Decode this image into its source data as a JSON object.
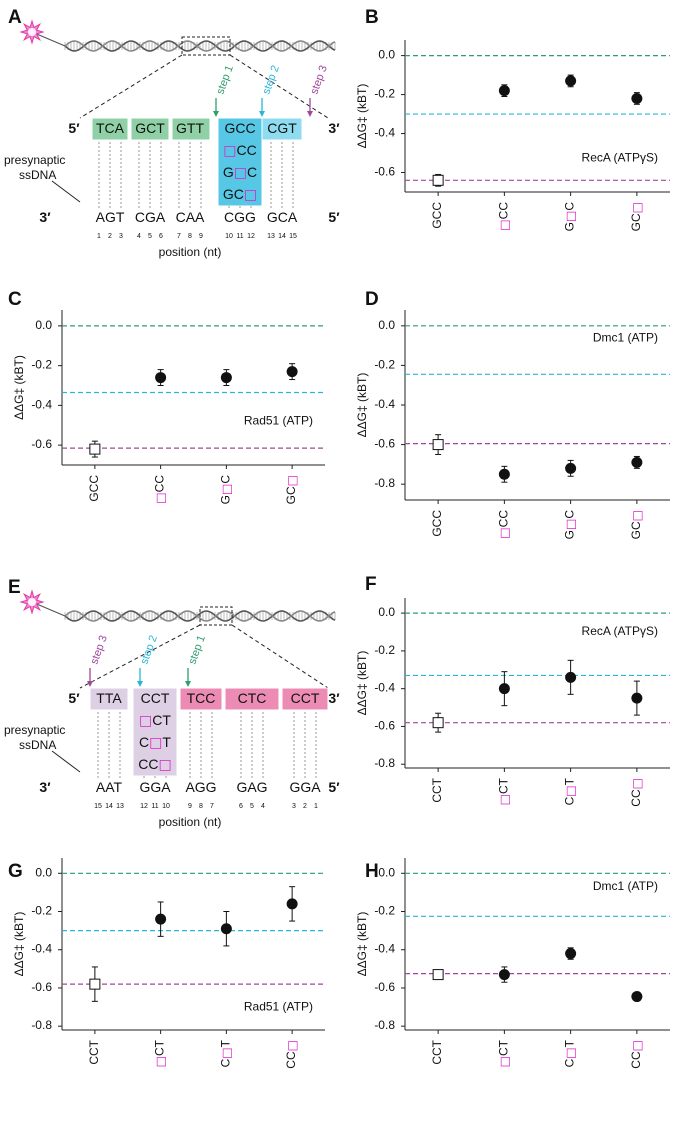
{
  "diagram_a": {
    "panel": "A",
    "top_5": "5′",
    "top_3": "3′",
    "top_codons": [
      "TCA",
      "GCT",
      "GTT",
      "GCC",
      "CGT"
    ],
    "variants": [
      "□CC",
      "G□C",
      "GC□"
    ],
    "steps": [
      "step 1",
      "step 2",
      "step 3"
    ],
    "strand_label": [
      "presynaptic",
      "ssDNA"
    ],
    "bottom_3": "3′",
    "bottom_5": "5′",
    "bottom_codons": [
      "AGT",
      "CGA",
      "CAA",
      "CGG",
      "GCA"
    ],
    "positions": [
      1,
      2,
      3,
      4,
      5,
      6,
      7,
      8,
      9,
      10,
      11,
      12,
      13,
      14,
      15
    ],
    "x_label": "position (nt)"
  },
  "diagram_e": {
    "panel": "E",
    "top_5": "5′",
    "top_3": "3′",
    "top_codons": [
      "TTA",
      "CCT",
      "TCC",
      "CTC",
      "CCT"
    ],
    "variants": [
      "□CT",
      "C□T",
      "CC□"
    ],
    "steps": [
      "step 3",
      "step 2",
      "step 1"
    ],
    "strand_label": [
      "presynaptic",
      "ssDNA"
    ],
    "bottom_3": "3′",
    "bottom_5": "5′",
    "bottom_codons": [
      "AAT",
      "GGA",
      "AGG",
      "GAG",
      "GGA"
    ],
    "positions": [
      15,
      14,
      13,
      12,
      11,
      10,
      9,
      8,
      7,
      6,
      5,
      4,
      3,
      2,
      1
    ],
    "x_label": "position (nt)"
  },
  "chart_data": [
    {
      "type": "point",
      "panel": "B",
      "annotation": "RecA (ATPγS)",
      "y_label": "ΔΔG‡ (kBT)",
      "categories": [
        "GCC",
        "□CC",
        "G□C",
        "GC□"
      ],
      "values": [
        -0.64,
        -0.18,
        -0.13,
        -0.22
      ],
      "errors": [
        0.03,
        0.03,
        0.03,
        0.03
      ],
      "markers": [
        "square",
        "circle",
        "circle",
        "circle"
      ],
      "ylim": [
        -0.7,
        0.08
      ],
      "yticks": [
        {
          "value": 0,
          "label": "0.0"
        },
        {
          "value": -0.2,
          "label": "-0.2"
        },
        {
          "value": -0.4,
          "label": "-0.4"
        },
        {
          "value": -0.6,
          "label": "-0.6"
        }
      ],
      "reference_lines": [
        {
          "value": 0,
          "color": "#2e9e6e"
        },
        {
          "value": -0.3,
          "color": "#29b6d6"
        },
        {
          "value": -0.64,
          "color": "#a0479c"
        }
      ]
    },
    {
      "type": "point",
      "panel": "C",
      "annotation": "Rad51 (ATP)",
      "y_label": "ΔΔG‡ (kBT)",
      "categories": [
        "GCC",
        "□CC",
        "G□C",
        "GC□"
      ],
      "values": [
        -0.62,
        -0.26,
        -0.26,
        -0.23
      ],
      "errors": [
        0.04,
        0.04,
        0.04,
        0.04
      ],
      "markers": [
        "square",
        "circle",
        "circle",
        "circle"
      ],
      "ylim": [
        -0.7,
        0.08
      ],
      "yticks": [
        {
          "value": 0,
          "label": "0.0"
        },
        {
          "value": -0.2,
          "label": "-0.2"
        },
        {
          "value": -0.4,
          "label": "-0.4"
        },
        {
          "value": -0.6,
          "label": "-0.6"
        }
      ],
      "reference_lines": [
        {
          "value": 0,
          "color": "#2e9e6e"
        },
        {
          "value": -0.335,
          "color": "#29b6d6"
        },
        {
          "value": -0.615,
          "color": "#a0479c"
        }
      ]
    },
    {
      "type": "point",
      "panel": "D",
      "annotation": "Dmc1 (ATP)",
      "y_label": "ΔΔG‡ (kBT)",
      "categories": [
        "GCC",
        "□CC",
        "G□C",
        "GC□"
      ],
      "values": [
        -0.6,
        -0.75,
        -0.72,
        -0.69
      ],
      "errors": [
        0.05,
        0.04,
        0.04,
        0.03
      ],
      "markers": [
        "square",
        "circle",
        "circle",
        "circle"
      ],
      "ylim": [
        -0.88,
        0.08
      ],
      "yticks": [
        {
          "value": 0,
          "label": "0.0"
        },
        {
          "value": -0.2,
          "label": "-0.2"
        },
        {
          "value": -0.4,
          "label": "-0.4"
        },
        {
          "value": -0.6,
          "label": "-0.6"
        },
        {
          "value": -0.8,
          "label": "-0.8"
        }
      ],
      "reference_lines": [
        {
          "value": 0,
          "color": "#2e9e6e"
        },
        {
          "value": -0.245,
          "color": "#29b6d6"
        },
        {
          "value": -0.595,
          "color": "#a0479c"
        }
      ]
    },
    {
      "type": "point",
      "panel": "F",
      "annotation": "RecA (ATPγS)",
      "y_label": "ΔΔG‡ (kBT)",
      "categories": [
        "CCT",
        "□CT",
        "C□T",
        "CC□"
      ],
      "values": [
        -0.58,
        -0.4,
        -0.34,
        -0.45
      ],
      "errors": [
        0.05,
        0.09,
        0.09,
        0.09
      ],
      "markers": [
        "square",
        "circle",
        "circle",
        "circle"
      ],
      "ylim": [
        -0.82,
        0.08
      ],
      "yticks": [
        {
          "value": 0,
          "label": "0.0"
        },
        {
          "value": -0.2,
          "label": "-0.2"
        },
        {
          "value": -0.4,
          "label": "-0.4"
        },
        {
          "value": -0.6,
          "label": "-0.6"
        },
        {
          "value": -0.8,
          "label": "-0.8"
        }
      ],
      "reference_lines": [
        {
          "value": 0,
          "color": "#2e9e6e"
        },
        {
          "value": -0.33,
          "color": "#29b6d6"
        },
        {
          "value": -0.58,
          "color": "#a0479c"
        }
      ]
    },
    {
      "type": "point",
      "panel": "G",
      "annotation": "Rad51 (ATP)",
      "y_label": "ΔΔG‡ (kBT)",
      "categories": [
        "CCT",
        "□CT",
        "C□T",
        "CC□"
      ],
      "values": [
        -0.58,
        -0.24,
        -0.29,
        -0.16
      ],
      "errors": [
        0.09,
        0.09,
        0.09,
        0.09
      ],
      "markers": [
        "square",
        "circle",
        "circle",
        "circle"
      ],
      "ylim": [
        -0.82,
        0.08
      ],
      "yticks": [
        {
          "value": 0,
          "label": "0.0"
        },
        {
          "value": -0.2,
          "label": "-0.2"
        },
        {
          "value": -0.4,
          "label": "-0.4"
        },
        {
          "value": -0.6,
          "label": "-0.6"
        },
        {
          "value": -0.8,
          "label": "-0.8"
        }
      ],
      "reference_lines": [
        {
          "value": 0,
          "color": "#2e9e6e"
        },
        {
          "value": -0.3,
          "color": "#29b6d6"
        },
        {
          "value": -0.58,
          "color": "#a0479c"
        }
      ]
    },
    {
      "type": "point",
      "panel": "H",
      "annotation": "Dmc1 (ATP)",
      "y_label": "ΔΔG‡ (kBT)",
      "categories": [
        "CCT",
        "□CT",
        "C□T",
        "CC□"
      ],
      "values": [
        -0.53,
        -0.53,
        -0.42,
        -0.645
      ],
      "errors": [
        0.01,
        0.04,
        0.03,
        0.01
      ],
      "markers": [
        "square",
        "circle",
        "circle",
        "circle"
      ],
      "ylim": [
        -0.82,
        0.08
      ],
      "yticks": [
        {
          "value": 0,
          "label": "0.0"
        },
        {
          "value": -0.2,
          "label": "-0.2"
        },
        {
          "value": -0.4,
          "label": "-0.4"
        },
        {
          "value": -0.6,
          "label": "-0.6"
        },
        {
          "value": -0.8,
          "label": "-0.8"
        }
      ],
      "reference_lines": [
        {
          "value": 0,
          "color": "#2e9e6e"
        },
        {
          "value": -0.225,
          "color": "#29b6d6"
        },
        {
          "value": -0.525,
          "color": "#a0479c"
        }
      ]
    }
  ]
}
